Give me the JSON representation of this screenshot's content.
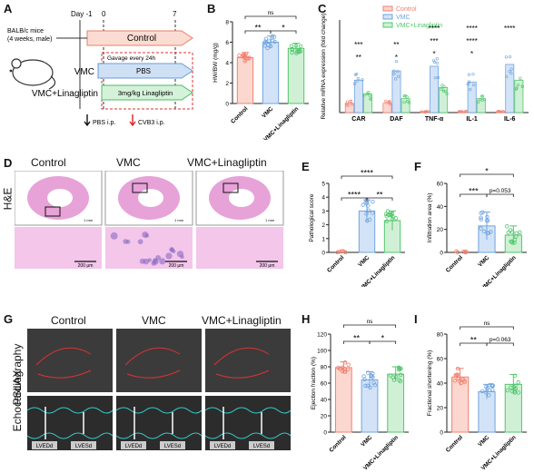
{
  "panels": {
    "A": {
      "letter": "A",
      "mouse_label": "BALB/c mice\n(4 weeks, male)",
      "mouse_line1": "BALB/c mice",
      "mouse_line2": "(4 weeks, male)",
      "day_m1": "Day -1",
      "day_0": "0",
      "day_7": "7",
      "row_control": "Control",
      "row_vmc": "VMC",
      "row_vmc_lin": "VMC+Linagliptin",
      "gavage": "Gavage every 24h",
      "pbs": "PBS",
      "lina_dose": "3mg/kg Linagliptin",
      "legend_pbs": "PBS i.p.",
      "legend_cvb3": "CVB3 i.p."
    },
    "B": {
      "letter": "B"
    },
    "C": {
      "letter": "C"
    },
    "D": {
      "letter": "D",
      "cols": [
        "Control",
        "VMC",
        "VMC+Linagliptin"
      ],
      "row_label": "H&E",
      "scale_small": "1 mm",
      "scale_big": "200 μm"
    },
    "E": {
      "letter": "E"
    },
    "F": {
      "letter": "F"
    },
    "G": {
      "letter": "G",
      "cols": [
        "Control",
        "VMC",
        "VMC+Linagliptin"
      ],
      "row_label1": "Echocardiography",
      "row_label2": "PSLAX",
      "lvedd": "LVEDd",
      "lvesd": "LVESd"
    },
    "H": {
      "letter": "H"
    },
    "I": {
      "letter": "I"
    }
  },
  "colors": {
    "control": "#f08070",
    "vmc": "#6fa4e0",
    "lina": "#4fc76a",
    "control_fill": "#fbd7cf",
    "vmc_fill": "#d3e3f7",
    "lina_fill": "#d0f0d6",
    "he_pink": "#e7a2d8",
    "he_bg": "#f3c6ea"
  },
  "chart_data": [
    {
      "id": "B",
      "type": "bar",
      "categories": [
        "Control",
        "VMC",
        "VMC+Linagliptin"
      ],
      "values": [
        4.5,
        6.0,
        5.4
      ],
      "errors": [
        0.5,
        0.6,
        0.5
      ],
      "ylabel": "HW/BW (mg/g)",
      "ylim": [
        0,
        8
      ],
      "yticks": [
        0,
        2,
        4,
        6,
        8
      ],
      "sig": [
        {
          "from": 0,
          "to": 1,
          "label": "**"
        },
        {
          "from": 1,
          "to": 2,
          "label": "*"
        },
        {
          "from": 0,
          "to": 2,
          "label": "ns"
        }
      ]
    },
    {
      "id": "C",
      "type": "bar",
      "categories": [
        "CAR",
        "DAF",
        "TNF-α",
        "IL-1",
        "IL-6"
      ],
      "series": [
        {
          "name": "Control",
          "values": [
            1,
            1,
            1,
            1,
            1
          ]
        },
        {
          "name": "VMC",
          "values": [
            3.5,
            4.5,
            50,
            33,
            52
          ]
        },
        {
          "name": "VMC+Linagliptin",
          "values": [
            2,
            1.5,
            27,
            15,
            35
          ]
        }
      ],
      "ylabel": "Relative mRNA expression (fold change)",
      "sig_labels": [
        "***",
        "**",
        "**",
        "*",
        "****",
        "***",
        "*",
        "****",
        "****",
        "*",
        "****",
        "**"
      ]
    },
    {
      "id": "E",
      "type": "bar",
      "categories": [
        "Control",
        "VMC",
        "VMC+Linagliptin"
      ],
      "values": [
        0,
        3.0,
        2.3
      ],
      "errors": [
        0,
        0.8,
        0.7
      ],
      "ylabel": "Pathological score",
      "ylim": [
        0,
        5
      ],
      "yticks": [
        0,
        1,
        2,
        3,
        4,
        5
      ],
      "sig": [
        {
          "from": 0,
          "to": 1,
          "label": "****"
        },
        {
          "from": 1,
          "to": 2,
          "label": "**"
        },
        {
          "from": 0,
          "to": 2,
          "label": "****"
        }
      ]
    },
    {
      "id": "F",
      "type": "bar",
      "categories": [
        "Control",
        "VMC",
        "VMC+Linagliptin"
      ],
      "values": [
        0,
        23,
        15
      ],
      "errors": [
        0,
        12,
        8
      ],
      "ylabel": "Infiltration area (%)",
      "ylim": [
        0,
        60
      ],
      "yticks": [
        0,
        20,
        40,
        60
      ],
      "sig": [
        {
          "from": 0,
          "to": 1,
          "label": "***"
        },
        {
          "from": 1,
          "to": 2,
          "label": "p=0.053"
        },
        {
          "from": 0,
          "to": 2,
          "label": "*"
        }
      ]
    },
    {
      "id": "H",
      "type": "bar",
      "categories": [
        "Control",
        "VMC",
        "VMC+Linagliptin"
      ],
      "values": [
        79,
        64,
        71
      ],
      "errors": [
        7,
        10,
        9
      ],
      "ylabel": "Ejection fraction (%)",
      "ylim": [
        0,
        120
      ],
      "yticks": [
        0,
        20,
        40,
        60,
        80,
        100,
        120
      ],
      "sig": [
        {
          "from": 0,
          "to": 1,
          "label": "**"
        },
        {
          "from": 1,
          "to": 2,
          "label": "*"
        },
        {
          "from": 0,
          "to": 2,
          "label": "ns"
        }
      ]
    },
    {
      "id": "I",
      "type": "bar",
      "categories": [
        "Control",
        "VMC",
        "VMC+Linagliptin"
      ],
      "values": [
        45,
        33,
        39
      ],
      "errors": [
        7,
        6,
        8
      ],
      "ylabel": "Fractional shortening (%)",
      "ylim": [
        0,
        80
      ],
      "yticks": [
        0,
        20,
        40,
        60,
        80
      ],
      "sig": [
        {
          "from": 0,
          "to": 1,
          "label": "**"
        },
        {
          "from": 1,
          "to": 2,
          "label": "p=0.063"
        },
        {
          "from": 0,
          "to": 2,
          "label": "ns"
        }
      ]
    }
  ]
}
